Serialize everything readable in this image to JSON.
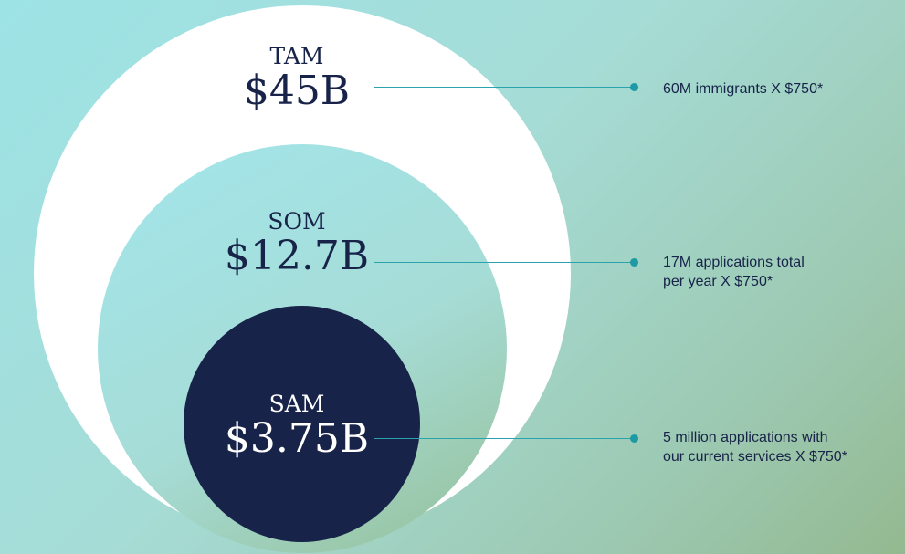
{
  "colors": {
    "navy": "#182349",
    "teal_accent": "#1f9aa5",
    "white": "#ffffff"
  },
  "tam": {
    "label": "TAM",
    "value": "$45B",
    "note": "60M immigrants X $750*"
  },
  "som": {
    "label": "SOM",
    "value": "$12.7B",
    "note": "17M applications total\nper year X $750*"
  },
  "sam": {
    "label": "SAM",
    "value": "$3.75B",
    "note": "5 million applications with\nour current services X $750*"
  }
}
